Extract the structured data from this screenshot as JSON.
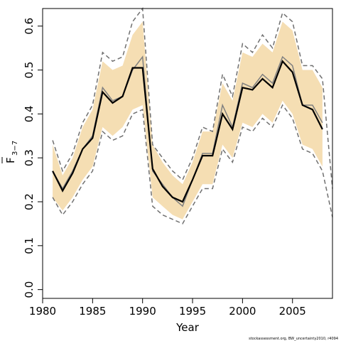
{
  "chart_data": {
    "type": "area",
    "xlabel": "Year",
    "ylabel_main": "F",
    "ylabel_sub": "3−7",
    "xlim": [
      1980,
      2009
    ],
    "ylim": [
      -0.02,
      0.64
    ],
    "x_ticks": [
      1980,
      1985,
      1990,
      1995,
      2000,
      2005
    ],
    "x_tick_labels": [
      "1980",
      "1985",
      "1990",
      "1995",
      "2000",
      "2005"
    ],
    "y_ticks": [
      0.0,
      0.1,
      0.2,
      0.3,
      0.4,
      0.5,
      0.6
    ],
    "y_tick_labels": [
      "0.0",
      "0.1",
      "0.2",
      "0.3",
      "0.4",
      "0.5",
      "0.6"
    ],
    "colors": {
      "band": "#f5deb3",
      "median": "#000000",
      "point": "#808080",
      "bounds": "#707070"
    },
    "x": [
      1981,
      1982,
      1983,
      1984,
      1985,
      1986,
      1987,
      1988,
      1989,
      1990,
      1991,
      1992,
      1993,
      1994,
      1995,
      1996,
      1997,
      1998,
      1999,
      2000,
      2001,
      2002,
      2003,
      2004,
      2005,
      2006,
      2007,
      2008
    ],
    "series": [
      {
        "key": "band",
        "lower": [
          0.21,
          0.18,
          0.21,
          0.25,
          0.28,
          0.37,
          0.35,
          0.37,
          0.41,
          0.42,
          0.21,
          0.19,
          0.17,
          0.16,
          0.2,
          0.24,
          0.24,
          0.33,
          0.3,
          0.38,
          0.37,
          0.4,
          0.38,
          0.43,
          0.4,
          0.33,
          0.32,
          0.28
        ],
        "upper": [
          0.33,
          0.26,
          0.3,
          0.37,
          0.41,
          0.52,
          0.5,
          0.51,
          0.58,
          0.61,
          0.33,
          0.29,
          0.26,
          0.24,
          0.29,
          0.36,
          0.36,
          0.47,
          0.43,
          0.54,
          0.53,
          0.56,
          0.54,
          0.61,
          0.59,
          0.5,
          0.5,
          0.46
        ]
      },
      {
        "key": "bounds",
        "lower": [
          0.21,
          0.17,
          0.2,
          0.24,
          0.27,
          0.36,
          0.34,
          0.35,
          0.4,
          0.41,
          0.19,
          0.17,
          0.16,
          0.15,
          0.19,
          0.23,
          0.23,
          0.32,
          0.29,
          0.37,
          0.36,
          0.39,
          0.37,
          0.42,
          0.39,
          0.32,
          0.31,
          0.27
        ],
        "upper": [
          0.34,
          0.27,
          0.31,
          0.38,
          0.42,
          0.54,
          0.52,
          0.53,
          0.61,
          0.64,
          0.33,
          0.3,
          0.27,
          0.25,
          0.3,
          0.37,
          0.36,
          0.49,
          0.44,
          0.56,
          0.54,
          0.58,
          0.55,
          0.63,
          0.61,
          0.51,
          0.51,
          0.48
        ],
        "tail_x": 2009,
        "tail_lower": 0.165,
        "tail_upper": 0.23
      },
      {
        "key": "point",
        "values": [
          0.27,
          0.23,
          0.27,
          0.32,
          0.35,
          0.46,
          0.43,
          0.44,
          0.5,
          0.53,
          0.27,
          0.24,
          0.21,
          0.19,
          0.25,
          0.31,
          0.31,
          0.42,
          0.37,
          0.47,
          0.46,
          0.49,
          0.47,
          0.53,
          0.51,
          0.42,
          0.42,
          0.38
        ]
      },
      {
        "key": "median",
        "values": [
          0.27,
          0.225,
          0.265,
          0.32,
          0.345,
          0.45,
          0.425,
          0.44,
          0.505,
          0.505,
          0.275,
          0.235,
          0.21,
          0.2,
          0.25,
          0.305,
          0.305,
          0.4,
          0.365,
          0.46,
          0.455,
          0.48,
          0.46,
          0.52,
          0.495,
          0.42,
          0.41,
          0.365
        ]
      }
    ]
  },
  "footer": {
    "credit": "stockassessment.org, BW_uncertainty2010, r4094"
  }
}
